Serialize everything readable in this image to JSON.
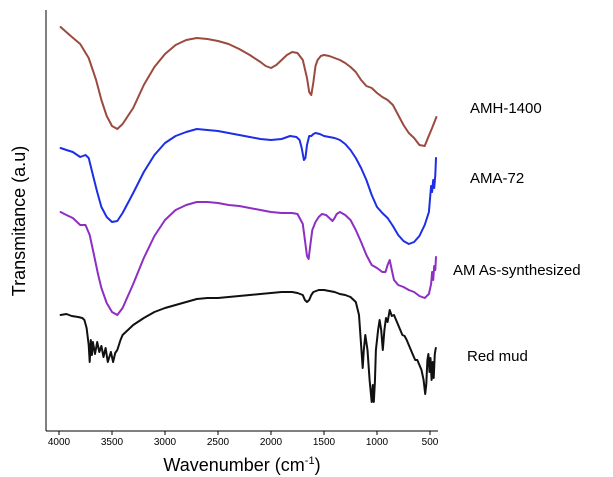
{
  "chart_data": {
    "type": "line",
    "title": "",
    "xlabel": "Wavenumber (cm",
    "xlabel_sup": "-1",
    "xlabel_end": ")",
    "ylabel": "Transmitance (a.u)",
    "xlim": [
      4000,
      430
    ],
    "x_reversed": true,
    "y_ticks_shown": false,
    "grid": false,
    "xticks": [
      4000,
      3500,
      3000,
      2500,
      2000,
      1500,
      1000,
      500
    ],
    "xtick_labels": [
      "4000",
      "3500",
      "3000",
      "2500",
      "2000",
      "1500",
      "1000",
      "500"
    ],
    "series": [
      {
        "name": "AMH-1400",
        "color": "#9b4a3f",
        "points": [
          [
            3985,
            27
          ],
          [
            3900,
            35
          ],
          [
            3800,
            44
          ],
          [
            3720,
            58
          ],
          [
            3650,
            80
          ],
          [
            3600,
            100
          ],
          [
            3550,
            116
          ],
          [
            3500,
            126
          ],
          [
            3450,
            129
          ],
          [
            3400,
            124
          ],
          [
            3300,
            108
          ],
          [
            3200,
            85
          ],
          [
            3100,
            67
          ],
          [
            3000,
            54
          ],
          [
            2900,
            45
          ],
          [
            2800,
            40
          ],
          [
            2700,
            38
          ],
          [
            2600,
            39
          ],
          [
            2500,
            41
          ],
          [
            2400,
            44
          ],
          [
            2300,
            49
          ],
          [
            2200,
            55
          ],
          [
            2100,
            62
          ],
          [
            2050,
            66
          ],
          [
            2000,
            68
          ],
          [
            1950,
            65
          ],
          [
            1900,
            60
          ],
          [
            1850,
            55
          ],
          [
            1800,
            52
          ],
          [
            1750,
            53
          ],
          [
            1700,
            60
          ],
          [
            1660,
            78
          ],
          [
            1640,
            92
          ],
          [
            1620,
            95
          ],
          [
            1600,
            82
          ],
          [
            1580,
            66
          ],
          [
            1560,
            60
          ],
          [
            1530,
            56
          ],
          [
            1500,
            55
          ],
          [
            1450,
            56
          ],
          [
            1400,
            58
          ],
          [
            1350,
            60
          ],
          [
            1300,
            63
          ],
          [
            1250,
            67
          ],
          [
            1200,
            72
          ],
          [
            1150,
            80
          ],
          [
            1100,
            86
          ],
          [
            1050,
            88
          ],
          [
            1000,
            93
          ],
          [
            950,
            97
          ],
          [
            900,
            100
          ],
          [
            850,
            105
          ],
          [
            800,
            115
          ],
          [
            750,
            125
          ],
          [
            700,
            133
          ],
          [
            650,
            138
          ],
          [
            600,
            145
          ],
          [
            550,
            146
          ],
          [
            520,
            138
          ],
          [
            480,
            128
          ],
          [
            440,
            117
          ]
        ]
      },
      {
        "name": "AMA-72",
        "color": "#1c2ee6",
        "points": [
          [
            3985,
            148
          ],
          [
            3930,
            150
          ],
          [
            3870,
            152
          ],
          [
            3800,
            157
          ],
          [
            3750,
            155
          ],
          [
            3720,
            158
          ],
          [
            3680,
            175
          ],
          [
            3640,
            192
          ],
          [
            3600,
            207
          ],
          [
            3550,
            217
          ],
          [
            3500,
            222
          ],
          [
            3450,
            221
          ],
          [
            3400,
            213
          ],
          [
            3300,
            193
          ],
          [
            3200,
            172
          ],
          [
            3100,
            155
          ],
          [
            3000,
            143
          ],
          [
            2900,
            136
          ],
          [
            2800,
            132
          ],
          [
            2700,
            129
          ],
          [
            2600,
            130
          ],
          [
            2500,
            131
          ],
          [
            2400,
            133
          ],
          [
            2300,
            135
          ],
          [
            2200,
            137
          ],
          [
            2100,
            139
          ],
          [
            2000,
            140
          ],
          [
            1900,
            139
          ],
          [
            1820,
            136
          ],
          [
            1760,
            137
          ],
          [
            1730,
            140
          ],
          [
            1710,
            148
          ],
          [
            1690,
            160
          ],
          [
            1675,
            158
          ],
          [
            1660,
            145
          ],
          [
            1640,
            136
          ],
          [
            1620,
            136
          ],
          [
            1600,
            134
          ],
          [
            1580,
            133
          ],
          [
            1540,
            134
          ],
          [
            1500,
            136
          ],
          [
            1450,
            137
          ],
          [
            1400,
            138
          ],
          [
            1350,
            140
          ],
          [
            1300,
            144
          ],
          [
            1250,
            150
          ],
          [
            1200,
            158
          ],
          [
            1150,
            168
          ],
          [
            1100,
            180
          ],
          [
            1050,
            195
          ],
          [
            1000,
            207
          ],
          [
            950,
            213
          ],
          [
            900,
            218
          ],
          [
            850,
            226
          ],
          [
            800,
            235
          ],
          [
            750,
            241
          ],
          [
            700,
            244
          ],
          [
            650,
            242
          ],
          [
            600,
            236
          ],
          [
            550,
            225
          ],
          [
            510,
            212
          ],
          [
            490,
            186
          ],
          [
            480,
            192
          ],
          [
            470,
            180
          ],
          [
            460,
            188
          ],
          [
            450,
            175
          ],
          [
            443,
            158
          ]
        ]
      },
      {
        "name": "AM As-synthesized",
        "color": "#8e2ec2",
        "points": [
          [
            3985,
            212
          ],
          [
            3930,
            215
          ],
          [
            3870,
            218
          ],
          [
            3800,
            225
          ],
          [
            3750,
            225
          ],
          [
            3710,
            235
          ],
          [
            3670,
            255
          ],
          [
            3630,
            275
          ],
          [
            3600,
            288
          ],
          [
            3550,
            303
          ],
          [
            3500,
            312
          ],
          [
            3450,
            315
          ],
          [
            3400,
            308
          ],
          [
            3300,
            284
          ],
          [
            3200,
            258
          ],
          [
            3100,
            236
          ],
          [
            3000,
            220
          ],
          [
            2900,
            210
          ],
          [
            2800,
            205
          ],
          [
            2700,
            202
          ],
          [
            2600,
            202
          ],
          [
            2500,
            203
          ],
          [
            2400,
            205
          ],
          [
            2300,
            206
          ],
          [
            2200,
            208
          ],
          [
            2100,
            210
          ],
          [
            2000,
            212
          ],
          [
            1900,
            213
          ],
          [
            1800,
            213
          ],
          [
            1750,
            214
          ],
          [
            1700,
            224
          ],
          [
            1680,
            240
          ],
          [
            1660,
            256
          ],
          [
            1645,
            259
          ],
          [
            1630,
            246
          ],
          [
            1610,
            230
          ],
          [
            1580,
            222
          ],
          [
            1550,
            217
          ],
          [
            1520,
            214
          ],
          [
            1480,
            215
          ],
          [
            1440,
            219
          ],
          [
            1420,
            221
          ],
          [
            1400,
            218
          ],
          [
            1380,
            214
          ],
          [
            1350,
            212
          ],
          [
            1300,
            215
          ],
          [
            1250,
            220
          ],
          [
            1200,
            230
          ],
          [
            1150,
            242
          ],
          [
            1100,
            255
          ],
          [
            1050,
            265
          ],
          [
            1000,
            268
          ],
          [
            950,
            272
          ],
          [
            920,
            272
          ],
          [
            900,
            265
          ],
          [
            880,
            260
          ],
          [
            860,
            270
          ],
          [
            840,
            280
          ],
          [
            800,
            285
          ],
          [
            750,
            287
          ],
          [
            700,
            290
          ],
          [
            650,
            292
          ],
          [
            600,
            296
          ],
          [
            550,
            298
          ],
          [
            510,
            294
          ],
          [
            490,
            284
          ],
          [
            480,
            272
          ],
          [
            470,
            280
          ],
          [
            460,
            266
          ],
          [
            450,
            270
          ],
          [
            443,
            257
          ]
        ]
      },
      {
        "name": "Red mud",
        "color": "#111111",
        "points": [
          [
            3985,
            315
          ],
          [
            3930,
            314
          ],
          [
            3880,
            316
          ],
          [
            3820,
            317
          ],
          [
            3780,
            318
          ],
          [
            3760,
            320
          ],
          [
            3740,
            328
          ],
          [
            3720,
            345
          ],
          [
            3710,
            362
          ],
          [
            3700,
            340
          ],
          [
            3690,
            355
          ],
          [
            3680,
            342
          ],
          [
            3660,
            354
          ],
          [
            3640,
            342
          ],
          [
            3620,
            352
          ],
          [
            3600,
            346
          ],
          [
            3580,
            357
          ],
          [
            3560,
            348
          ],
          [
            3540,
            362
          ],
          [
            3510,
            352
          ],
          [
            3490,
            362
          ],
          [
            3470,
            353
          ],
          [
            3450,
            350
          ],
          [
            3420,
            340
          ],
          [
            3400,
            335
          ],
          [
            3300,
            325
          ],
          [
            3200,
            318
          ],
          [
            3100,
            312
          ],
          [
            3000,
            308
          ],
          [
            2900,
            305
          ],
          [
            2800,
            302
          ],
          [
            2700,
            299
          ],
          [
            2600,
            298
          ],
          [
            2500,
            298
          ],
          [
            2400,
            297
          ],
          [
            2300,
            296
          ],
          [
            2200,
            295
          ],
          [
            2100,
            294
          ],
          [
            2000,
            293
          ],
          [
            1900,
            292
          ],
          [
            1800,
            292
          ],
          [
            1750,
            293
          ],
          [
            1700,
            295
          ],
          [
            1680,
            300
          ],
          [
            1660,
            302
          ],
          [
            1640,
            300
          ],
          [
            1620,
            295
          ],
          [
            1600,
            292
          ],
          [
            1550,
            290
          ],
          [
            1500,
            290
          ],
          [
            1450,
            291
          ],
          [
            1400,
            292
          ],
          [
            1350,
            294
          ],
          [
            1300,
            295
          ],
          [
            1250,
            297
          ],
          [
            1200,
            302
          ],
          [
            1170,
            315
          ],
          [
            1150,
            345
          ],
          [
            1135,
            368
          ],
          [
            1125,
            350
          ],
          [
            1110,
            335
          ],
          [
            1090,
            350
          ],
          [
            1070,
            380
          ],
          [
            1050,
            402
          ],
          [
            1040,
            385
          ],
          [
            1030,
            402
          ],
          [
            1020,
            382
          ],
          [
            1010,
            350
          ],
          [
            990,
            330
          ],
          [
            975,
            320
          ],
          [
            960,
            330
          ],
          [
            945,
            350
          ],
          [
            930,
            330
          ],
          [
            915,
            318
          ],
          [
            900,
            322
          ],
          [
            880,
            310
          ],
          [
            860,
            316
          ],
          [
            840,
            315
          ],
          [
            820,
            320
          ],
          [
            800,
            325
          ],
          [
            780,
            330
          ],
          [
            760,
            335
          ],
          [
            740,
            336
          ],
          [
            720,
            340
          ],
          [
            700,
            345
          ],
          [
            680,
            350
          ],
          [
            660,
            355
          ],
          [
            640,
            360
          ],
          [
            620,
            360
          ],
          [
            600,
            365
          ],
          [
            580,
            370
          ],
          [
            560,
            380
          ],
          [
            545,
            394
          ],
          [
            535,
            384
          ],
          [
            525,
            360
          ],
          [
            515,
            354
          ],
          [
            505,
            372
          ],
          [
            495,
            358
          ],
          [
            485,
            380
          ],
          [
            475,
            362
          ],
          [
            465,
            378
          ],
          [
            455,
            354
          ],
          [
            445,
            348
          ]
        ]
      }
    ],
    "labels": [
      {
        "text": "AMH-1400",
        "series": "AMH-1400"
      },
      {
        "text": "AMA-72",
        "series": "AMA-72"
      },
      {
        "text": "AM As-synthesized",
        "series": "AM As-synthesized"
      },
      {
        "text": "Red mud",
        "series": "Red mud"
      }
    ]
  }
}
